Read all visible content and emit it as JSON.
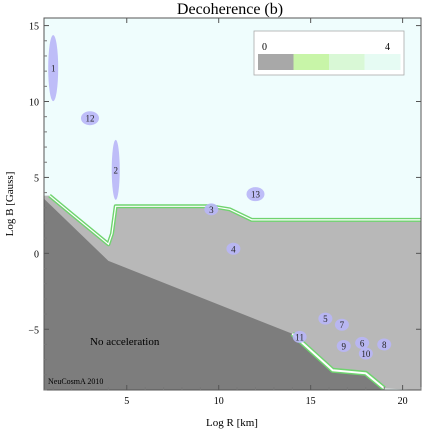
{
  "chart_data": {
    "type": "heatmap",
    "title": "Decoherence (b)",
    "xlabel": "Log R [km]",
    "ylabel": "Log B [Gauss]",
    "xlim": [
      0.5,
      21
    ],
    "ylim": [
      -9,
      15.5
    ],
    "xticks": [
      5,
      10,
      15,
      20
    ],
    "yticks": [
      -5,
      0,
      5,
      10,
      15
    ],
    "legend": {
      "placement": "top-right",
      "min_label": "0",
      "max_label": "4",
      "colors": [
        "#a8a8a8",
        "#c8f5a8",
        "#d9f8d6",
        "#e6fbf3"
      ]
    },
    "region_colors": {
      "upper": "#effdfd",
      "middle": "#b8b8b8",
      "lower": "#7d7d7d",
      "boundary": "#6fd36f"
    },
    "boundary_upper": [
      [
        0.8,
        3.8
      ],
      [
        2.0,
        2.6
      ],
      [
        4.0,
        0.6
      ],
      [
        4.2,
        1.3
      ],
      [
        4.4,
        3.1
      ],
      [
        9.6,
        3.1
      ],
      [
        10.6,
        2.9
      ],
      [
        11.8,
        2.2
      ],
      [
        21.0,
        2.2
      ]
    ],
    "boundary_lower": [
      [
        14.0,
        -5.3
      ],
      [
        16.2,
        -7.7
      ],
      [
        18.0,
        -7.9
      ],
      [
        19.0,
        -8.9
      ]
    ],
    "sources": [
      {
        "label": "1",
        "x": 1.0,
        "y": 12.2
      },
      {
        "label": "2",
        "x": 4.4,
        "y": 5.5
      },
      {
        "label": "3",
        "x": 9.6,
        "y": 2.9
      },
      {
        "label": "4",
        "x": 10.8,
        "y": 0.3
      },
      {
        "label": "5",
        "x": 15.8,
        "y": -4.3
      },
      {
        "label": "6",
        "x": 17.8,
        "y": -5.9
      },
      {
        "label": "7",
        "x": 16.7,
        "y": -4.7
      },
      {
        "label": "8",
        "x": 19.0,
        "y": -6.0
      },
      {
        "label": "9",
        "x": 16.8,
        "y": -6.1
      },
      {
        "label": "10",
        "x": 18.0,
        "y": -6.6
      },
      {
        "label": "11",
        "x": 14.4,
        "y": -5.5
      },
      {
        "label": "12",
        "x": 3.0,
        "y": 8.9
      },
      {
        "label": "13",
        "x": 12.0,
        "y": 3.9
      }
    ],
    "annotations": [
      "No acceleration"
    ],
    "credit": "NeuCosmA 2010"
  }
}
